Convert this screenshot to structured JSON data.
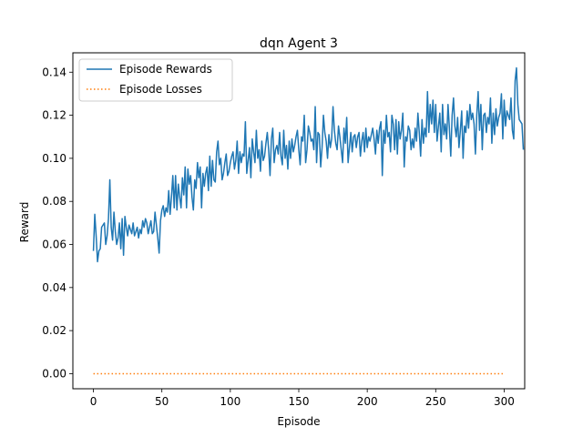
{
  "chart_data": {
    "type": "line",
    "title": "dqn Agent 3",
    "xlabel": "Episode",
    "ylabel": "Reward",
    "xlim": [
      -15,
      315
    ],
    "ylim": [
      -0.007,
      0.149
    ],
    "xticks": [
      0,
      50,
      100,
      150,
      200,
      250,
      300
    ],
    "xtick_labels": [
      "0",
      "50",
      "100",
      "150",
      "200",
      "250",
      "300"
    ],
    "yticks": [
      0.0,
      0.02,
      0.04,
      0.06,
      0.08,
      0.1,
      0.12,
      0.14
    ],
    "ytick_labels": [
      "0.00",
      "0.02",
      "0.04",
      "0.06",
      "0.08",
      "0.10",
      "0.12",
      "0.14"
    ],
    "grid": false,
    "legend_position": "upper-left",
    "series": [
      {
        "name": "Episode Rewards",
        "color": "#1f77b4",
        "style": "solid",
        "x_start": 0,
        "x_step": 1,
        "values": [
          0.057,
          0.074,
          0.064,
          0.052,
          0.057,
          0.058,
          0.068,
          0.069,
          0.07,
          0.06,
          0.064,
          0.072,
          0.09,
          0.068,
          0.062,
          0.075,
          0.066,
          0.06,
          0.063,
          0.07,
          0.058,
          0.072,
          0.055,
          0.073,
          0.068,
          0.064,
          0.069,
          0.067,
          0.065,
          0.07,
          0.064,
          0.066,
          0.068,
          0.063,
          0.067,
          0.065,
          0.071,
          0.068,
          0.072,
          0.07,
          0.065,
          0.068,
          0.071,
          0.065,
          0.066,
          0.075,
          0.069,
          0.063,
          0.056,
          0.071,
          0.076,
          0.078,
          0.073,
          0.077,
          0.075,
          0.085,
          0.074,
          0.082,
          0.092,
          0.077,
          0.092,
          0.076,
          0.088,
          0.082,
          0.077,
          0.091,
          0.083,
          0.096,
          0.077,
          0.095,
          0.088,
          0.092,
          0.082,
          0.076,
          0.09,
          0.086,
          0.098,
          0.091,
          0.096,
          0.077,
          0.093,
          0.087,
          0.093,
          0.096,
          0.085,
          0.101,
          0.087,
          0.099,
          0.09,
          0.089,
          0.103,
          0.108,
          0.097,
          0.1,
          0.09,
          0.093,
          0.098,
          0.102,
          0.092,
          0.094,
          0.098,
          0.101,
          0.103,
          0.095,
          0.099,
          0.108,
          0.093,
          0.103,
          0.098,
          0.102,
          0.101,
          0.117,
          0.093,
          0.099,
          0.105,
          0.091,
          0.109,
          0.103,
          0.098,
          0.113,
          0.1,
          0.104,
          0.094,
          0.108,
          0.099,
          0.101,
          0.107,
          0.112,
          0.104,
          0.092,
          0.109,
          0.114,
          0.098,
          0.104,
          0.106,
          0.102,
          0.112,
          0.101,
          0.097,
          0.113,
          0.1,
          0.106,
          0.095,
          0.108,
          0.1,
          0.109,
          0.103,
          0.106,
          0.11,
          0.113,
          0.104,
          0.097,
          0.11,
          0.108,
          0.12,
          0.098,
          0.104,
          0.115,
          0.112,
          0.108,
          0.109,
          0.104,
          0.124,
          0.098,
          0.112,
          0.111,
          0.096,
          0.105,
          0.12,
          0.112,
          0.108,
          0.1,
          0.111,
          0.105,
          0.109,
          0.124,
          0.113,
          0.107,
          0.104,
          0.115,
          0.11,
          0.104,
          0.098,
          0.114,
          0.107,
          0.119,
          0.098,
          0.105,
          0.112,
          0.103,
          0.11,
          0.111,
          0.105,
          0.11,
          0.112,
          0.101,
          0.108,
          0.112,
          0.103,
          0.114,
          0.105,
          0.11,
          0.108,
          0.111,
          0.114,
          0.109,
          0.102,
          0.113,
          0.107,
          0.114,
          0.117,
          0.092,
          0.113,
          0.107,
          0.12,
          0.11,
          0.112,
          0.103,
          0.12,
          0.116,
          0.104,
          0.118,
          0.102,
          0.117,
          0.109,
          0.113,
          0.121,
          0.096,
          0.11,
          0.108,
          0.115,
          0.113,
          0.104,
          0.109,
          0.105,
          0.114,
          0.108,
          0.121,
          0.112,
          0.101,
          0.118,
          0.107,
          0.114,
          0.11,
          0.131,
          0.112,
          0.125,
          0.116,
          0.127,
          0.112,
          0.125,
          0.108,
          0.115,
          0.121,
          0.103,
          0.125,
          0.111,
          0.116,
          0.109,
          0.125,
          0.114,
          0.101,
          0.12,
          0.128,
          0.115,
          0.11,
          0.119,
          0.105,
          0.113,
          0.122,
          0.1,
          0.115,
          0.112,
          0.122,
          0.114,
          0.125,
          0.118,
          0.121,
          0.116,
          0.102,
          0.12,
          0.131,
          0.113,
          0.125,
          0.104,
          0.12,
          0.121,
          0.112,
          0.119,
          0.116,
          0.128,
          0.107,
          0.121,
          0.111,
          0.123,
          0.115,
          0.119,
          0.121,
          0.13,
          0.109,
          0.127,
          0.115,
          0.122,
          0.12,
          0.118,
          0.128,
          0.113,
          0.109,
          0.136,
          0.142,
          0.125,
          0.118,
          0.117,
          0.116,
          0.104
        ]
      },
      {
        "name": "Episode Losses",
        "color": "#ff7f0e",
        "style": "dotted",
        "x": [
          0,
          299
        ],
        "values": [
          0.0,
          0.0
        ]
      }
    ]
  }
}
